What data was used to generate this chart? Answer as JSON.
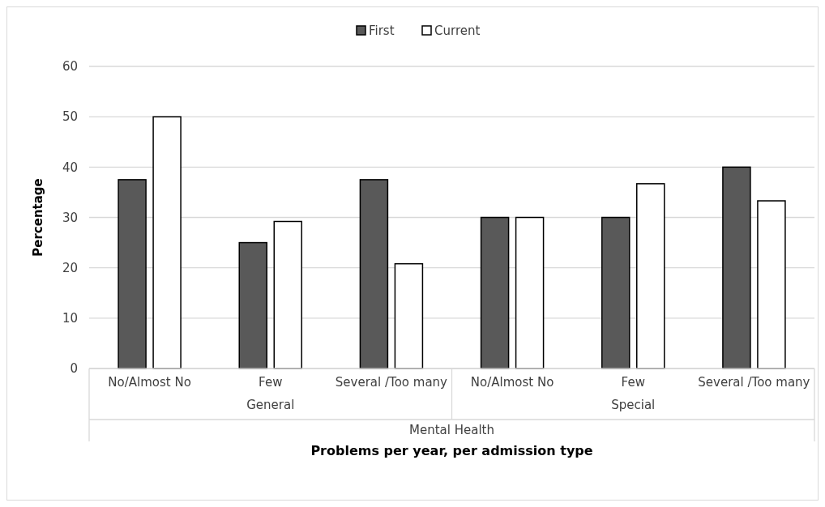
{
  "chart_data": {
    "type": "bar",
    "xlabel": "Problems per year, per admission type",
    "ylabel": "Percentage",
    "categories": [
      "No/Almost No",
      "Few",
      "Several /Too many",
      "No/Almost No",
      "Few",
      "Several /Too many"
    ],
    "series": [
      {
        "name": "First",
        "color": "#595959",
        "values": [
          37.5,
          25,
          37.5,
          30,
          30,
          40
        ]
      },
      {
        "name": "Current",
        "color": "#ffffff",
        "values": [
          50,
          29.2,
          20.8,
          30,
          36.7,
          33.3
        ]
      }
    ],
    "annotations": [
      "General",
      "Special",
      "Mental Health"
    ],
    "ylim": [
      0,
      60
    ],
    "yticks": [
      0,
      10,
      20,
      30,
      40,
      50,
      60
    ],
    "grid": "y",
    "legend": "top"
  }
}
